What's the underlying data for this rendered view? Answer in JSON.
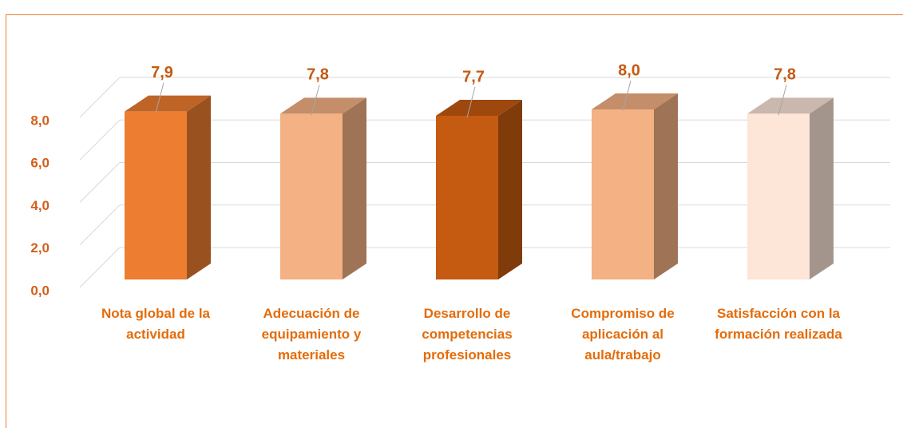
{
  "chart_data": {
    "type": "bar3d",
    "categories": [
      "Nota global de la actividad",
      "Adecuación de equipamiento y materiales",
      "Desarrollo de competencias profesionales",
      "Compromiso de aplicación al aula/trabajo",
      "Satisfacción con la formación realizada"
    ],
    "values": [
      7.9,
      7.8,
      7.7,
      8.0,
      7.8
    ],
    "value_labels": [
      "7,9",
      "7,8",
      "7,7",
      "8,0",
      "7,8"
    ],
    "colors": [
      "#ed7d31",
      "#f4b183",
      "#c55a11",
      "#f4b183",
      "#fde5d8"
    ],
    "ylim": [
      0,
      8
    ],
    "yticks": [
      {
        "value": 0,
        "label": "0,0"
      },
      {
        "value": 2,
        "label": "2,0"
      },
      {
        "value": 4,
        "label": "4,0"
      },
      {
        "value": 6,
        "label": "6,0"
      },
      {
        "value": 8,
        "label": "8,0"
      }
    ],
    "grid": true
  }
}
